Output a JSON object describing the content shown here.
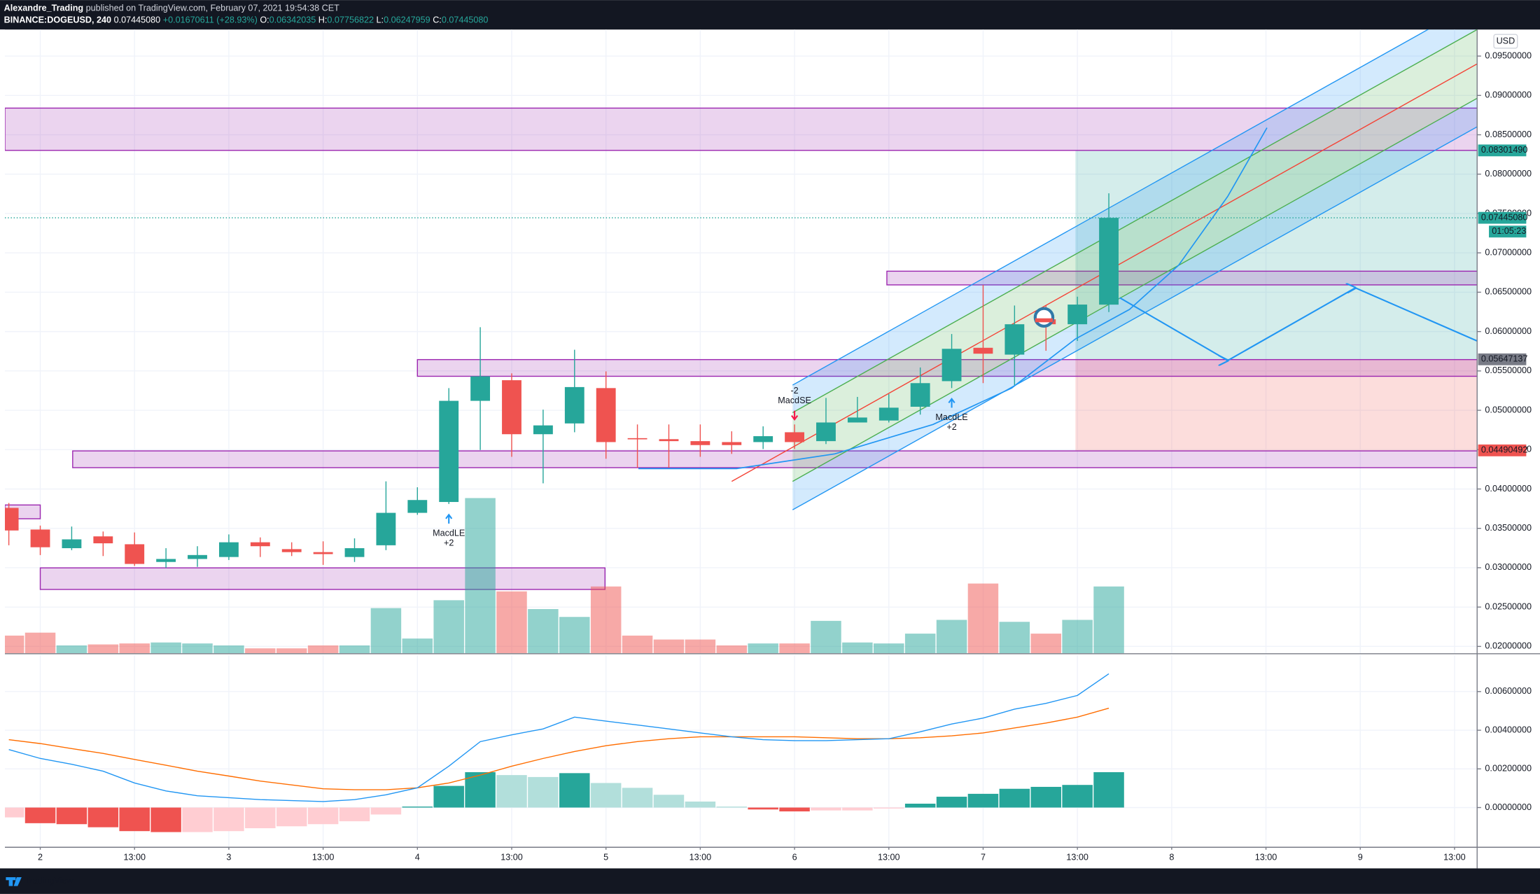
{
  "header": {
    "publisher": "Alexandre_Trading",
    "published": "published on TradingView.com, February 07, 2021 19:54:38 CET",
    "symbol": "BINANCE:DOGEUSD, 240",
    "change": "+0.01670611 (+28.93%)",
    "ohlc_names": [
      "O:",
      "H:",
      "L:",
      "C:"
    ]
  },
  "footer": {
    "brand": "TradingView"
  },
  "chart_data": {
    "type": "candlestick",
    "currency": "USD",
    "x": [
      -4,
      0,
      4,
      8,
      12,
      16,
      20,
      24,
      28,
      32,
      36,
      40,
      44,
      48,
      52,
      56,
      60,
      64,
      68,
      72,
      76,
      80,
      84,
      88,
      92,
      96,
      100,
      104,
      108,
      112,
      116,
      120,
      124,
      128,
      132,
      136
    ],
    "open": [
      0.0376,
      0.03485,
      0.03248,
      0.03398,
      0.03298,
      0.03073,
      0.03111,
      0.03136,
      0.03323,
      0.03236,
      0.03198,
      0.03136,
      0.03285,
      0.03697,
      0.03835,
      0.0512,
      0.05382,
      0.04696,
      0.04833,
      0.05282,
      0.04646,
      0.04633,
      0.04608,
      0.04596,
      0.04596,
      0.04721,
      0.04608,
      0.04845,
      0.0487,
      0.05045,
      0.0537,
      0.05794,
      0.05707,
      0.06156,
      0.06093,
      0.06342035
    ],
    "high": [
      0.03822,
      0.03535,
      0.03523,
      0.0346,
      0.03448,
      0.03248,
      0.03273,
      0.03423,
      0.03385,
      0.03323,
      0.03335,
      0.03373,
      0.04097,
      0.04022,
      0.05282,
      0.06056,
      0.05469,
      0.05008,
      0.05769,
      0.05494,
      0.0482,
      0.0482,
      0.0482,
      0.04733,
      0.04796,
      0.0482,
      0.05157,
      0.0517,
      0.05207,
      0.05544,
      0.05969,
      0.06593,
      0.06331,
      0.06331,
      0.06443,
      0.07756822
    ],
    "low": [
      0.03285,
      0.03161,
      0.03223,
      0.03148,
      0.03023,
      0.02998,
      0.03011,
      0.03098,
      0.03136,
      0.03148,
      0.03036,
      0.03073,
      0.03223,
      0.03672,
      0.0381,
      0.04496,
      0.04409,
      0.04072,
      0.04721,
      0.04384,
      0.04271,
      0.04271,
      0.04409,
      0.04446,
      0.04508,
      0.04508,
      0.04571,
      0.04845,
      0.04845,
      0.04945,
      0.05282,
      0.05345,
      0.0532,
      0.05756,
      0.05881,
      0.06247959
    ],
    "close": [
      0.03473,
      0.0326,
      0.0336,
      0.0331,
      0.03048,
      0.03111,
      0.03161,
      0.03323,
      0.03273,
      0.03198,
      0.03173,
      0.03248,
      0.03697,
      0.0386,
      0.0512,
      0.05432,
      0.04696,
      0.04808,
      0.05295,
      0.04596,
      0.04633,
      0.04608,
      0.04558,
      0.04558,
      0.04671,
      0.04596,
      0.04845,
      0.04908,
      0.05033,
      0.05345,
      0.05781,
      0.05719,
      0.06093,
      0.06093,
      0.06343,
      0.0744508
    ],
    "value_labels": {
      "open": "0.06342035",
      "high": "0.07756822",
      "low": "0.06247959",
      "close": "0.07445080"
    },
    "up_color": "#26a69a",
    "down_color": "#ef5350",
    "volume": [
      18,
      21,
      8,
      9,
      10,
      11,
      10,
      8,
      5,
      5,
      8,
      8,
      46,
      15,
      54,
      158,
      63,
      45,
      37,
      68,
      18,
      14,
      14,
      8,
      10,
      10,
      33,
      11,
      10,
      20,
      34,
      71,
      32,
      20,
      34,
      68
    ],
    "vlim": [
      0,
      160
    ],
    "xlim": [
      -4.5,
      182.875
    ],
    "xticks": [
      {
        "value": 0,
        "label": "2"
      },
      {
        "value": 12,
        "label": "13:00"
      },
      {
        "value": 24,
        "label": "3"
      },
      {
        "value": 36,
        "label": "13:00"
      },
      {
        "value": 48,
        "label": "4"
      },
      {
        "value": 60,
        "label": "13:00"
      },
      {
        "value": 72,
        "label": "5"
      },
      {
        "value": 84,
        "label": "13:00"
      },
      {
        "value": 96,
        "label": "6"
      },
      {
        "value": 108,
        "label": "13:00"
      },
      {
        "value": 120,
        "label": "7"
      },
      {
        "value": 132,
        "label": "13:00"
      },
      {
        "value": 144,
        "label": "8"
      },
      {
        "value": 156,
        "label": "13:00"
      },
      {
        "value": 168,
        "label": "9"
      },
      {
        "value": 180,
        "label": "13:00"
      }
    ],
    "ylim": [
      0.01913,
      0.09837
    ],
    "yticks": [
      {
        "value": 0.02,
        "label": "0.02000000"
      },
      {
        "value": 0.025,
        "label": "0.02500000"
      },
      {
        "value": 0.03,
        "label": "0.03000000"
      },
      {
        "value": 0.035,
        "label": "0.03500000"
      },
      {
        "value": 0.04,
        "label": "0.04000000"
      },
      {
        "value": 0.045,
        "label": "0.04500000"
      },
      {
        "value": 0.05,
        "label": "0.05000000"
      },
      {
        "value": 0.055,
        "label": "0.05500000"
      },
      {
        "value": 0.06,
        "label": "0.06000000"
      },
      {
        "value": 0.065,
        "label": "0.06500000"
      },
      {
        "value": 0.07,
        "label": "0.07000000"
      },
      {
        "value": 0.075,
        "label": "0.07500000"
      },
      {
        "value": 0.08,
        "label": "0.08000000"
      },
      {
        "value": 0.085,
        "label": "0.08500000"
      },
      {
        "value": 0.09,
        "label": "0.09000000"
      },
      {
        "value": 0.095,
        "label": "0.09500000"
      }
    ],
    "grid": true,
    "countdown": "01:05:23",
    "zone_color": "#9c27b0",
    "zones": [
      {
        "x": [
          -4.5,
          182.875
        ],
        "y": [
          0.08302,
          0.08839
        ]
      },
      {
        "x": [
          107.75,
          182.875
        ],
        "y": [
          0.06593,
          0.06767
        ]
      },
      {
        "x": [
          48,
          182.875
        ],
        "y": [
          0.05432,
          0.05644
        ]
      },
      {
        "x": [
          4.125,
          182.875
        ],
        "y": [
          0.04271,
          0.04484
        ]
      },
      {
        "x": [
          -4.5,
          0
        ],
        "y": [
          0.03622,
          0.03797
        ]
      },
      {
        "x": [
          0,
          71.875
        ],
        "y": [
          0.02724,
          0.02998
        ]
      }
    ],
    "position": {
      "x": [
        131.75,
        182.875
      ],
      "target": {
        "value": 0.0830149,
        "label": "0.08301490",
        "color": "#26a69a"
      },
      "entry": {
        "value": 0.05647137,
        "label": "0.05647137",
        "color": "#787b86"
      },
      "stop": {
        "value": 0.04490492,
        "label": "0.04490492",
        "color": "#ef5350"
      }
    },
    "channel": {
      "lines": [
        {
          "x": [
            95.75,
            182.875
          ],
          "values": [
            0.0532,
            0.10187
          ],
          "color": "#2196f3"
        },
        {
          "x": [
            95.75,
            182.875
          ],
          "values": [
            0.0497,
            0.09837
          ],
          "color": "#4caf50"
        },
        {
          "x": [
            88,
            182.875
          ],
          "values": [
            0.04097,
            0.09401
          ],
          "color": "#f44336"
        },
        {
          "x": [
            95.75,
            182.875
          ],
          "values": [
            0.04097,
            0.08964
          ],
          "color": "#4caf50"
        },
        {
          "x": [
            95.75,
            182.875
          ],
          "values": [
            0.03735,
            0.08602
          ],
          "color": "#2196f3"
        }
      ]
    },
    "curve": {
      "x": [
        76.125,
        88.625,
        101.125,
        113.625,
        123.625,
        131.75,
        138.625,
        144.875,
        151.125,
        156.125
      ],
      "values": [
        0.04259,
        0.04259,
        0.04446,
        0.0482,
        0.05282,
        0.05906,
        0.06281,
        0.06842,
        0.07716,
        0.08589
      ],
      "color": "#2196f3"
    },
    "projection": {
      "x": [
        137.375,
        151.125,
        167.375,
        182.875
      ],
      "values": [
        0.0643,
        0.05632,
        0.06555,
        0.05881
      ],
      "color": "#2196f3"
    },
    "signals": [
      {
        "x": 52,
        "name": "MacdLE",
        "qty": "+2",
        "direction": "up",
        "color": "#2196f3"
      },
      {
        "x": 96,
        "name": "MacdSE",
        "qty": "-2",
        "direction": "down",
        "color": "#f7184a"
      },
      {
        "x": 116,
        "name": "MacdLE",
        "qty": "+2",
        "direction": "up",
        "color": "#2196f3"
      }
    ],
    "macd": {
      "ylim": [
        -0.00203,
        0.00788
      ],
      "yticks": [
        {
          "value": 0,
          "label": "0.00000000"
        },
        {
          "value": 0.002,
          "label": "0.00200000"
        },
        {
          "value": 0.004,
          "label": "0.00400000"
        },
        {
          "value": 0.006,
          "label": "0.00600000"
        }
      ],
      "macd": {
        "color": "#2196f3",
        "values": [
          0.003,
          0.00254,
          0.00224,
          0.00188,
          0.00127,
          0.00086,
          0.00061,
          0.00051,
          0.00041,
          0.00036,
          0.00031,
          0.00041,
          0.00066,
          0.00102,
          0.00214,
          0.00341,
          0.00376,
          0.00407,
          0.00468,
          0.00447,
          0.00427,
          0.00407,
          0.00386,
          0.00366,
          0.00351,
          0.00346,
          0.00346,
          0.00351,
          0.00356,
          0.00392,
          0.00432,
          0.00463,
          0.00509,
          0.00539,
          0.0058,
          0.00692
        ]
      },
      "signal": {
        "color": "#ff6d00",
        "values": [
          0.00351,
          0.00331,
          0.00305,
          0.0028,
          0.00249,
          0.00219,
          0.00188,
          0.00163,
          0.00137,
          0.00117,
          0.00097,
          0.00092,
          0.00092,
          0.00102,
          0.00127,
          0.00168,
          0.00214,
          0.00254,
          0.0029,
          0.0032,
          0.00341,
          0.00356,
          0.00366,
          0.00366,
          0.00366,
          0.00366,
          0.00361,
          0.00356,
          0.00356,
          0.00361,
          0.00371,
          0.00386,
          0.00412,
          0.00437,
          0.00468,
          0.00514
        ]
      },
      "histogram": {
        "colors": {
          "up_strong": "#26a69a",
          "up_weak": "#b2dfdb",
          "down_strong": "#ef5350",
          "down_weak": "#ffcdd2"
        },
        "values": [
          -0.00051,
          -0.00081,
          -0.00086,
          -0.00102,
          -0.00122,
          -0.00127,
          -0.00127,
          -0.00122,
          -0.00107,
          -0.00097,
          -0.00086,
          -0.00071,
          -0.00036,
          5e-05,
          0.00112,
          0.00183,
          0.00168,
          0.00158,
          0.00178,
          0.00127,
          0.00102,
          0.00066,
          0.00031,
          5e-05,
          -0.0001,
          -0.0002,
          -0.00015,
          -0.00015,
          -5e-05,
          0.0002,
          0.00056,
          0.00071,
          0.00097,
          0.00107,
          0.00117,
          0.00183
        ]
      }
    }
  }
}
